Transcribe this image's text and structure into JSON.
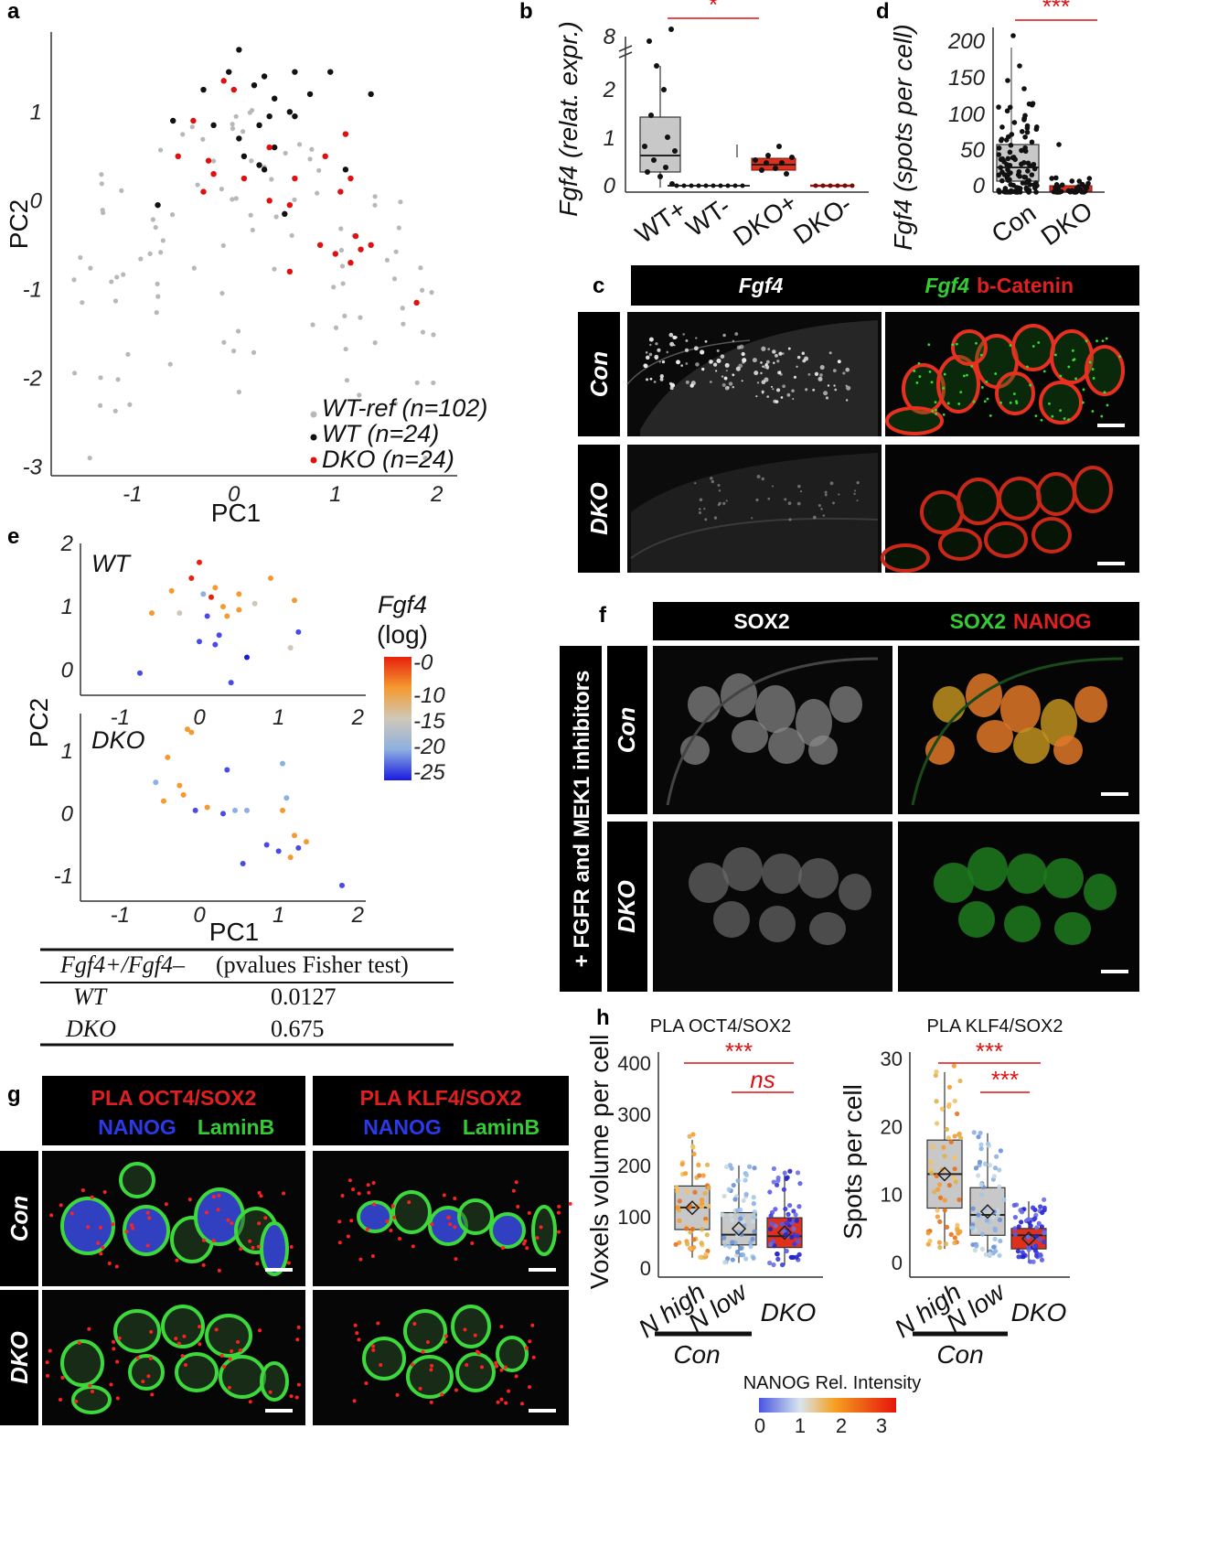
{
  "panels": {
    "a": "a",
    "b": "b",
    "c": "c",
    "d": "d",
    "e": "e",
    "f": "f",
    "g": "g",
    "h": "h"
  },
  "panel_a": {
    "xlabel": "PC1",
    "ylabel": "PC2",
    "x_ticks": [
      "-1",
      "0",
      "1",
      "2"
    ],
    "y_ticks": [
      "1",
      "0",
      "-1",
      "-2",
      "-3"
    ],
    "legend": [
      "WT-ref (n=102)",
      "WT (n=24)",
      "DKO (n=24)"
    ],
    "colors": {
      "wt_ref": "#b8b8b8",
      "wt": "#111111",
      "dko": "#e01010"
    }
  },
  "panel_b": {
    "ylabel": "Fgf4 (relat. expr.)",
    "y_ticks": [
      "8",
      "2",
      "1",
      "0"
    ],
    "categories": [
      "WT+",
      "WT-",
      "DKO+",
      "DKO-"
    ],
    "significance": "*"
  },
  "panel_c": {
    "header_left": "Fgf4",
    "header_right_a": "Fgf4",
    "header_right_b": "b-Catenin",
    "rows": [
      "Con",
      "DKO"
    ]
  },
  "panel_d": {
    "ylabel": "Fgf4 (spots per cell)",
    "y_ticks": [
      "200",
      "150",
      "100",
      "50",
      "0"
    ],
    "categories": [
      "Con",
      "DKO"
    ],
    "significance": "***"
  },
  "panel_e": {
    "top_title": "WT",
    "bottom_title": "DKO",
    "xlabel": "PC1",
    "ylabel": "PC2",
    "x_ticks": [
      "-1",
      "0",
      "1",
      "2"
    ],
    "top_y_ticks": [
      "2",
      "1",
      "0"
    ],
    "bottom_y_ticks": [
      "1",
      "0",
      "-1"
    ],
    "colorbar_title_1": "Fgf4",
    "colorbar_title_2": "(log)",
    "colorbar_ticks": [
      "-0",
      "-10",
      "-15",
      "-20",
      "-25"
    ],
    "table": {
      "header_a": "Fgf4+/Fgf4–",
      "header_b": "(pvalues Fisher test)",
      "rows": [
        {
          "label": "WT",
          "value": "0.0127"
        },
        {
          "label": "DKO",
          "value": "0.675"
        }
      ]
    }
  },
  "panel_f": {
    "header_left": "SOX2",
    "header_right_a": "SOX2",
    "header_right_b": "NANOG",
    "side_label": "+ FGFR and MEK1 inhibitors",
    "rows": [
      "Con",
      "DKO"
    ]
  },
  "panel_g": {
    "left_header_1": "PLA OCT4/SOX2",
    "right_header_1": "PLA KLF4/SOX2",
    "header_2a": "NANOG",
    "header_2b": "LaminB",
    "rows": [
      "Con",
      "DKO"
    ]
  },
  "panel_h": {
    "left_title": "PLA OCT4/SOX2",
    "right_title": "PLA KLF4/SOX2",
    "left_ylabel": "Voxels volume per cell",
    "right_ylabel": "Spots per cell",
    "left_y_ticks": [
      "400",
      "300",
      "200",
      "100",
      "0"
    ],
    "right_y_ticks": [
      "30",
      "20",
      "10",
      "0"
    ],
    "categories": [
      "N high",
      "N low",
      "DKO"
    ],
    "group_label": "Con",
    "sig_left": [
      "***",
      "ns"
    ],
    "sig_right": [
      "***",
      "***"
    ],
    "colorbar_title": "NANOG Rel. Intensity",
    "colorbar_ticks": [
      "0",
      "1",
      "2",
      "3"
    ]
  },
  "chart_data": [
    {
      "type": "scatter",
      "panel": "a",
      "xlabel": "PC1",
      "ylabel": "PC2",
      "xlim": [
        -1.8,
        2.2
      ],
      "ylim": [
        -3.1,
        1.9
      ],
      "series": [
        {
          "name": "WT (n=24)",
          "points": [
            [
              0.05,
              1.7
            ],
            [
              -0.05,
              1.45
            ],
            [
              0.3,
              1.4
            ],
            [
              0.6,
              1.45
            ],
            [
              0.95,
              1.45
            ],
            [
              1.35,
              1.2
            ],
            [
              -0.3,
              1.25
            ],
            [
              0.2,
              1.3
            ],
            [
              0.4,
              1.15
            ],
            [
              0.35,
              0.95
            ],
            [
              0.6,
              0.95
            ],
            [
              -0.6,
              0.9
            ],
            [
              -0.2,
              0.85
            ],
            [
              0.25,
              0.85
            ],
            [
              0.05,
              0.7
            ],
            [
              0.25,
              0.4
            ],
            [
              0.3,
              0.35
            ],
            [
              -0.75,
              -0.05
            ],
            [
              0.5,
              -0.15
            ],
            [
              0.1,
              0.5
            ],
            [
              0.55,
              1.0
            ],
            [
              0.75,
              1.2
            ],
            [
              1.1,
              0.35
            ],
            [
              0.4,
              0.6
            ]
          ]
        },
        {
          "name": "DKO (n=24)",
          "points": [
            [
              -0.1,
              1.35
            ],
            [
              0.0,
              1.25
            ],
            [
              -0.4,
              0.9
            ],
            [
              -0.55,
              0.5
            ],
            [
              -0.25,
              0.45
            ],
            [
              -0.2,
              0.3
            ],
            [
              0.1,
              0.25
            ],
            [
              0.35,
              0.6
            ],
            [
              0.6,
              0.25
            ],
            [
              1.1,
              0.75
            ],
            [
              1.15,
              0.25
            ],
            [
              1.05,
              0.1
            ],
            [
              0.55,
              -0.05
            ],
            [
              0.35,
              0.0
            ],
            [
              0.85,
              -0.5
            ],
            [
              1.0,
              -0.6
            ],
            [
              1.25,
              -0.55
            ],
            [
              1.35,
              -0.5
            ],
            [
              1.2,
              -0.4
            ],
            [
              1.15,
              -0.7
            ],
            [
              0.55,
              -0.8
            ],
            [
              1.8,
              -1.15
            ],
            [
              0.9,
              0.5
            ],
            [
              -0.3,
              0.1
            ]
          ]
        }
      ]
    },
    {
      "type": "box",
      "panel": "b",
      "categories": [
        "WT+",
        "WT-",
        "DKO+",
        "DKO-"
      ],
      "ylabel": "Fgf4 (relat. expr.)",
      "boxes": [
        {
          "min": 0.0,
          "q1": 0.3,
          "median": 0.65,
          "q3": 1.5,
          "max": 2.6
        },
        {
          "min": 0.0,
          "q1": 0.0,
          "median": 0.0,
          "q3": 0.0,
          "max": 0.0
        },
        {
          "min": 0.35,
          "q1": 0.35,
          "median": 0.45,
          "q3": 0.6,
          "max": 0.9
        },
        {
          "min": 0.0,
          "q1": 0.0,
          "median": 0.0,
          "q3": 0.0,
          "max": 0.0
        }
      ]
    },
    {
      "type": "box",
      "panel": "d",
      "categories": [
        "Con",
        "DKO"
      ],
      "ylabel": "Fgf4 (spots per cell)",
      "ylim": [
        0,
        220
      ],
      "boxes": [
        {
          "min": 0,
          "q1": 12,
          "median": 30,
          "q3": 52,
          "max": 120
        },
        {
          "min": 0,
          "q1": 0,
          "median": 2,
          "q3": 6,
          "max": 14
        }
      ]
    },
    {
      "type": "box",
      "panel": "h-left",
      "categories": [
        "N high",
        "N low",
        "DKO"
      ],
      "ylabel": "Voxels volume per cell",
      "ylim": [
        0,
        400
      ],
      "boxes": [
        {
          "min": 20,
          "q1": 75,
          "median": 118,
          "q3": 160,
          "max": 250
        },
        {
          "min": 10,
          "q1": 45,
          "median": 65,
          "q3": 108,
          "max": 200
        },
        {
          "min": 5,
          "q1": 40,
          "median": 62,
          "q3": 98,
          "max": 190
        }
      ]
    },
    {
      "type": "box",
      "panel": "h-right",
      "categories": [
        "N high",
        "N low",
        "DKO"
      ],
      "ylabel": "Spots per cell",
      "ylim": [
        0,
        30
      ],
      "boxes": [
        {
          "min": 2,
          "q1": 8,
          "median": 13,
          "q3": 18,
          "max": 28
        },
        {
          "min": 1,
          "q1": 4,
          "median": 7,
          "q3": 11,
          "max": 19
        },
        {
          "min": 0,
          "q1": 2,
          "median": 4,
          "q3": 5,
          "max": 9
        }
      ]
    }
  ]
}
